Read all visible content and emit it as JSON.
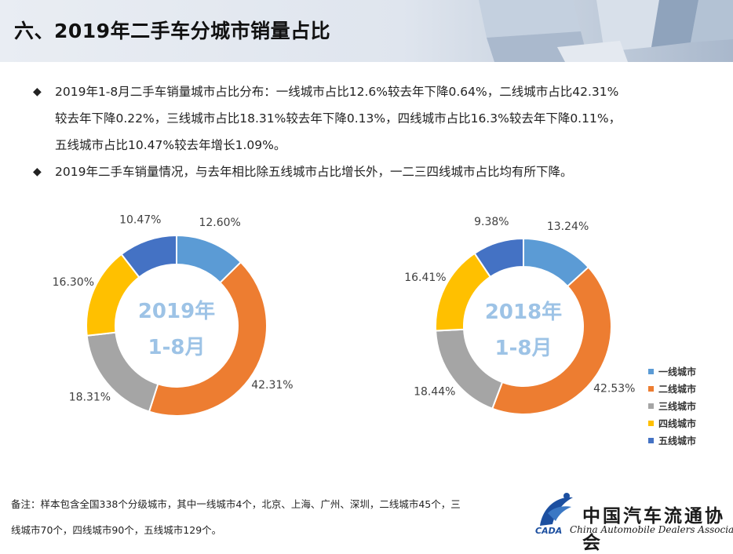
{
  "header": {
    "title": "六、2019年二手车分城市销量占比"
  },
  "bullets": [
    {
      "line1": "2019年1-8月二手车销量城市占比分布：一线城市占比12.6%较去年下降0.64%，二线城市占比42.31%",
      "line2": "较去年下降0.22%，三线城市占比18.31%较去年下降0.13%，四线城市占比16.3%较去年下降0.11%，",
      "line3": "五线城市占比10.47%较去年增长1.09%。"
    },
    {
      "line1": "2019年二手车销量情况，与去年相比除五线城市占比增长外，一二三四线城市占比均有所下降。"
    }
  ],
  "bullet_mark": "◆",
  "chart_data": [
    {
      "type": "pie",
      "variant": "donut",
      "center_label": [
        "2019年",
        "1-8月"
      ],
      "categories": [
        "一线城市",
        "二线城市",
        "三线城市",
        "四线城市",
        "五线城市"
      ],
      "values": [
        12.6,
        42.31,
        18.31,
        16.3,
        10.47
      ],
      "labels": [
        "12.60%",
        "42.31%",
        "18.31%",
        "16.30%",
        "10.47%"
      ]
    },
    {
      "type": "pie",
      "variant": "donut",
      "center_label": [
        "2018年",
        "1-8月"
      ],
      "categories": [
        "一线城市",
        "二线城市",
        "三线城市",
        "四线城市",
        "五线城市"
      ],
      "values": [
        13.24,
        42.53,
        18.44,
        16.41,
        9.38
      ],
      "labels": [
        "13.24%",
        "42.53%",
        "18.44%",
        "16.41%",
        "9.38%"
      ],
      "legend": "right"
    }
  ],
  "colors": [
    "#5b9bd5",
    "#ed7d31",
    "#a5a5a5",
    "#ffc000",
    "#4472c4"
  ],
  "center_text_color": "#9dc3e6",
  "legend": [
    "一线城市",
    "二线城市",
    "三线城市",
    "四线城市",
    "五线城市"
  ],
  "note": {
    "line1": "备注：样本包含全国338个分级城市，其中一线城市4个，北京、上海、广州、深圳，二线城市45个，三",
    "line2": "线城市70个，四线城市90个，五线城市129个。"
  },
  "logo": {
    "cn": "中国汽车流通协会",
    "en": "China Automobile Dealers Association",
    "abbr": "CADA"
  }
}
